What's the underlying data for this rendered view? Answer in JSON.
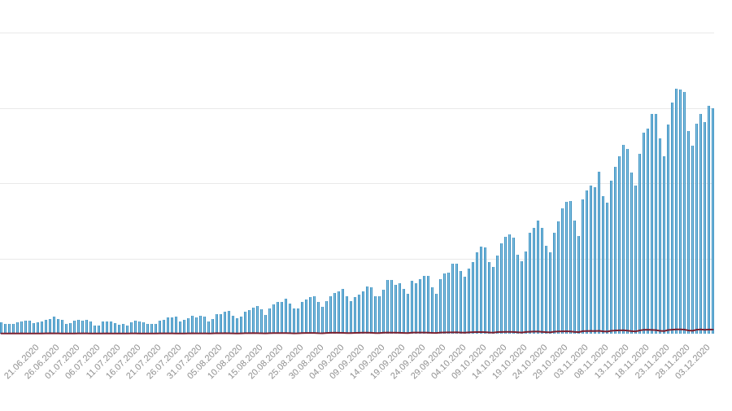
{
  "chart_data": {
    "type": "bar",
    "title": "",
    "xlabel": "",
    "ylabel": "",
    "legend": "none",
    "grid": "horizontal",
    "ylim": [
      0,
      20000
    ],
    "gridline_step": 5000,
    "start_date": "13.06.2020",
    "end_date": "05.12.2020",
    "x_tick_every_days": 5,
    "first_tick_day_index": 8,
    "x_tick_labels": [
      "21.06.2020",
      "26.06.2020",
      "01.07.2020",
      "06.07.2020",
      "11.07.2020",
      "16.07.2020",
      "21.07.2020",
      "26.07.2020",
      "31.07.2020",
      "05.08.2020",
      "10.08.2020",
      "15.08.2020",
      "20.08.2020",
      "25.08.2020",
      "30.08.2020",
      "04.09.2020",
      "09.09.2020",
      "14.09.2020",
      "19.09.2020",
      "24.09.2020",
      "29.09.2020",
      "04.10.2020",
      "09.10.2020",
      "14.10.2020",
      "19.10.2020",
      "24.10.2020",
      "29.10.2020",
      "03.11.2020",
      "08.11.2020",
      "13.11.2020",
      "18.11.2020",
      "23.11.2020",
      "28.11.2020",
      "03.12.2020"
    ],
    "series": [
      {
        "name": "daily-cases-bars",
        "type": "bar",
        "color": "#4EA3CF",
        "edge_color": "#3E8FC0",
        "values": [
          753,
          648,
          656,
          666,
          758,
          829,
          841,
          867,
          681,
          735,
          833,
          940,
          994,
          1109,
          948,
          917,
          646,
          706,
          889,
          923,
          876,
          914,
          823,
          543,
          564,
          807,
          810,
          819,
          678,
          612,
          638,
          564,
          758,
          848,
          809,
          771,
          651,
          625,
          673,
          856,
          940,
          1106,
          1090,
          1112,
          807,
          919,
          1022,
          1197,
          1090,
          1172,
          1112,
          807,
          988,
          1271,
          1318,
          1453,
          1489,
          1199,
          1008,
          1158,
          1433,
          1592,
          1732,
          1847,
          1637,
          1264,
          1658,
          1967,
          2134,
          2106,
          2328,
          1987,
          1658,
          1670,
          2088,
          2283,
          2438,
          2481,
          2096,
          1797,
          2141,
          2495,
          2723,
          2836,
          2971,
          2462,
          2174,
          2411,
          2582,
          2836,
          3144,
          3103,
          2476,
          2462,
          2905,
          3584,
          3565,
          3228,
          3370,
          2966,
          2675,
          3497,
          3372,
          3614,
          3833,
          3849,
          3089,
          2671,
          3627,
          4027,
          4069,
          4633,
          4661,
          4140,
          3774,
          4348,
          4753,
          5397,
          5804,
          5728,
          4766,
          4420,
          5191,
          5992,
          6410,
          6594,
          6377,
          5231,
          4830,
          5469,
          6719,
          7053,
          7517,
          7014,
          5833,
          5426,
          6677,
          7474,
          8312,
          8752,
          8787,
          7490,
          6505,
          8899,
          9524,
          9850,
          9721,
          10746,
          9145,
          8687,
          10179,
          11057,
          11787,
          12524,
          12287,
          10714,
          9832,
          11968,
          13357,
          13629,
          14575,
          14580,
          12978,
          11787,
          13882,
          15331,
          16294,
          16218,
          16072,
          13464,
          12498,
          13936,
          14580,
          14054,
          15131,
          14961
        ]
      },
      {
        "name": "daily-deaths-line",
        "type": "line",
        "color": "#7B2130",
        "values": [
          17,
          13,
          12,
          23,
          14,
          23,
          17,
          15,
          12,
          11,
          14,
          23,
          25,
          24,
          21,
          13,
          11,
          12,
          17,
          23,
          19,
          22,
          14,
          9,
          14,
          18,
          22,
          18,
          13,
          9,
          11,
          13,
          20,
          22,
          17,
          14,
          10,
          11,
          16,
          21,
          24,
          22,
          19,
          17,
          12,
          18,
          24,
          26,
          21,
          24,
          19,
          14,
          21,
          30,
          27,
          31,
          29,
          20,
          16,
          24,
          31,
          33,
          36,
          32,
          25,
          19,
          31,
          38,
          42,
          44,
          40,
          31,
          24,
          29,
          45,
          48,
          51,
          46,
          33,
          28,
          46,
          57,
          63,
          58,
          54,
          41,
          37,
          55,
          62,
          66,
          68,
          59,
          44,
          42,
          63,
          75,
          72,
          69,
          61,
          49,
          45,
          71,
          76,
          78,
          74,
          69,
          52,
          46,
          75,
          82,
          84,
          89,
          92,
          77,
          64,
          89,
          103,
          106,
          110,
          102,
          81,
          70,
          107,
          115,
          121,
          124,
          112,
          90,
          77,
          116,
          131,
          138,
          142,
          127,
          101,
          88,
          134,
          149,
          158,
          161,
          145,
          119,
          105,
          166,
          177,
          183,
          179,
          191,
          157,
          138,
          191,
          210,
          224,
          227,
          205,
          166,
          152,
          216,
          257,
          264,
          248,
          236,
          190,
          172,
          241,
          266,
          287,
          284,
          270,
          217,
          195,
          264,
          285,
          256,
          277,
          270
        ]
      }
    ]
  }
}
